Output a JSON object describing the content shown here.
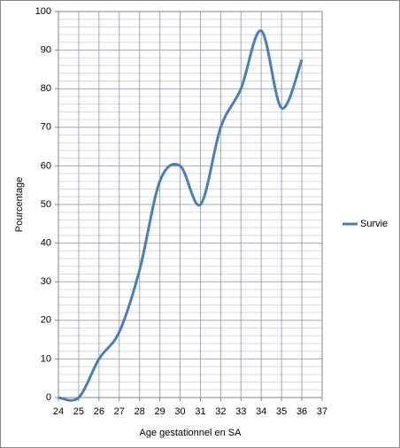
{
  "chart_data": {
    "type": "line",
    "x_label": "Age gestationnel en SA",
    "y_label": "Pourcentage",
    "x": [
      24,
      25,
      26,
      27,
      28,
      29,
      30,
      31,
      32,
      33,
      34,
      35,
      36
    ],
    "series": [
      {
        "name": "Survie",
        "color": "#4a7ebb",
        "values": [
          0,
          0,
          10,
          17,
          33,
          56,
          60,
          50,
          70,
          80,
          95,
          75,
          87.5
        ]
      }
    ],
    "xlim": [
      24,
      37
    ],
    "xticks": [
      24,
      25,
      26,
      27,
      28,
      29,
      30,
      31,
      32,
      33,
      34,
      35,
      36,
      37
    ],
    "ylim": [
      0,
      100
    ],
    "yticks": [
      0,
      10,
      20,
      30,
      40,
      50,
      60,
      70,
      80,
      90,
      100
    ],
    "grid": true,
    "smooth": true,
    "legend": "right"
  }
}
